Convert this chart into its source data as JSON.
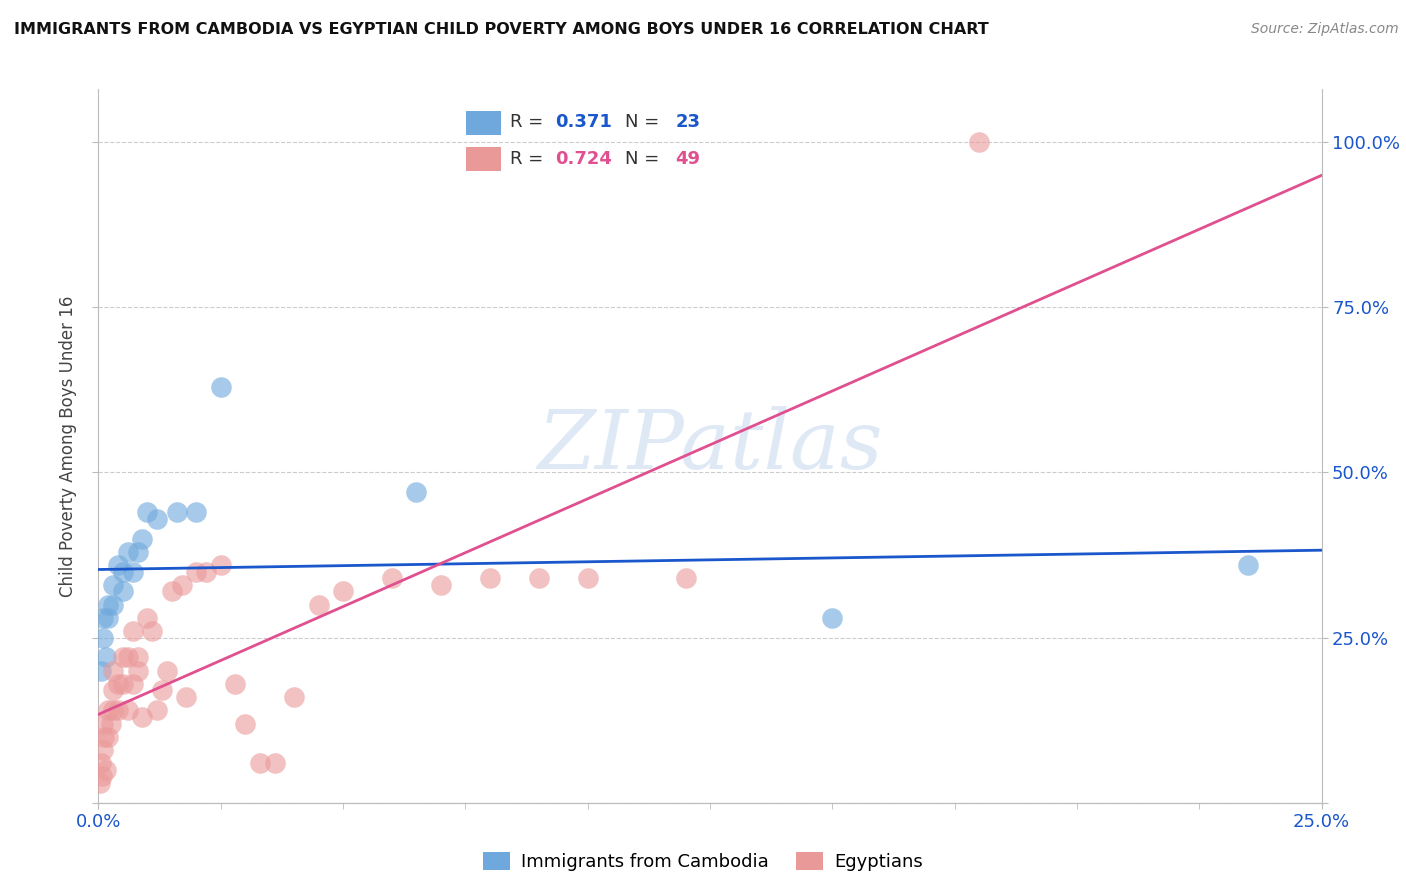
{
  "title": "IMMIGRANTS FROM CAMBODIA VS EGYPTIAN CHILD POVERTY AMONG BOYS UNDER 16 CORRELATION CHART",
  "source": "Source: ZipAtlas.com",
  "ylabel": "Child Poverty Among Boys Under 16",
  "xlim": [
    0.0,
    0.25
  ],
  "ylim": [
    0.0,
    1.08
  ],
  "yticks": [
    0.0,
    0.25,
    0.5,
    0.75,
    1.0
  ],
  "ytick_labels": [
    "",
    "25.0%",
    "50.0%",
    "75.0%",
    "100.0%"
  ],
  "xtick_labels": [
    "0.0%",
    "25.0%"
  ],
  "watermark": "ZIPatlas",
  "legend_cambodia_R": "0.371",
  "legend_cambodia_N": "23",
  "legend_egypt_R": "0.724",
  "legend_egypt_N": "49",
  "color_cambodia": "#6fa8dc",
  "color_egypt": "#ea9999",
  "line_color_cambodia": "#1a56cc",
  "line_color_egypt": "#e05090",
  "cambodia_x": [
    0.0005,
    0.001,
    0.001,
    0.0015,
    0.002,
    0.002,
    0.003,
    0.003,
    0.004,
    0.005,
    0.005,
    0.006,
    0.007,
    0.008,
    0.009,
    0.01,
    0.012,
    0.016,
    0.02,
    0.025,
    0.065,
    0.15,
    0.235
  ],
  "cambodia_y": [
    0.2,
    0.25,
    0.28,
    0.22,
    0.3,
    0.28,
    0.33,
    0.3,
    0.36,
    0.32,
    0.35,
    0.38,
    0.35,
    0.38,
    0.4,
    0.44,
    0.43,
    0.44,
    0.44,
    0.63,
    0.47,
    0.28,
    0.36
  ],
  "egypt_x": [
    0.0003,
    0.0005,
    0.0008,
    0.001,
    0.001,
    0.0012,
    0.0015,
    0.002,
    0.002,
    0.0025,
    0.003,
    0.003,
    0.003,
    0.004,
    0.004,
    0.005,
    0.005,
    0.006,
    0.006,
    0.007,
    0.007,
    0.008,
    0.008,
    0.009,
    0.01,
    0.011,
    0.012,
    0.013,
    0.014,
    0.015,
    0.017,
    0.018,
    0.02,
    0.022,
    0.025,
    0.028,
    0.03,
    0.033,
    0.036,
    0.04,
    0.045,
    0.05,
    0.06,
    0.07,
    0.08,
    0.09,
    0.1,
    0.12,
    0.18
  ],
  "egypt_y": [
    0.03,
    0.06,
    0.04,
    0.08,
    0.12,
    0.1,
    0.05,
    0.1,
    0.14,
    0.12,
    0.14,
    0.17,
    0.2,
    0.14,
    0.18,
    0.18,
    0.22,
    0.14,
    0.22,
    0.18,
    0.26,
    0.2,
    0.22,
    0.13,
    0.28,
    0.26,
    0.14,
    0.17,
    0.2,
    0.32,
    0.33,
    0.16,
    0.35,
    0.35,
    0.36,
    0.18,
    0.12,
    0.06,
    0.06,
    0.16,
    0.3,
    0.32,
    0.34,
    0.33,
    0.34,
    0.34,
    0.34,
    0.34,
    1.0
  ]
}
